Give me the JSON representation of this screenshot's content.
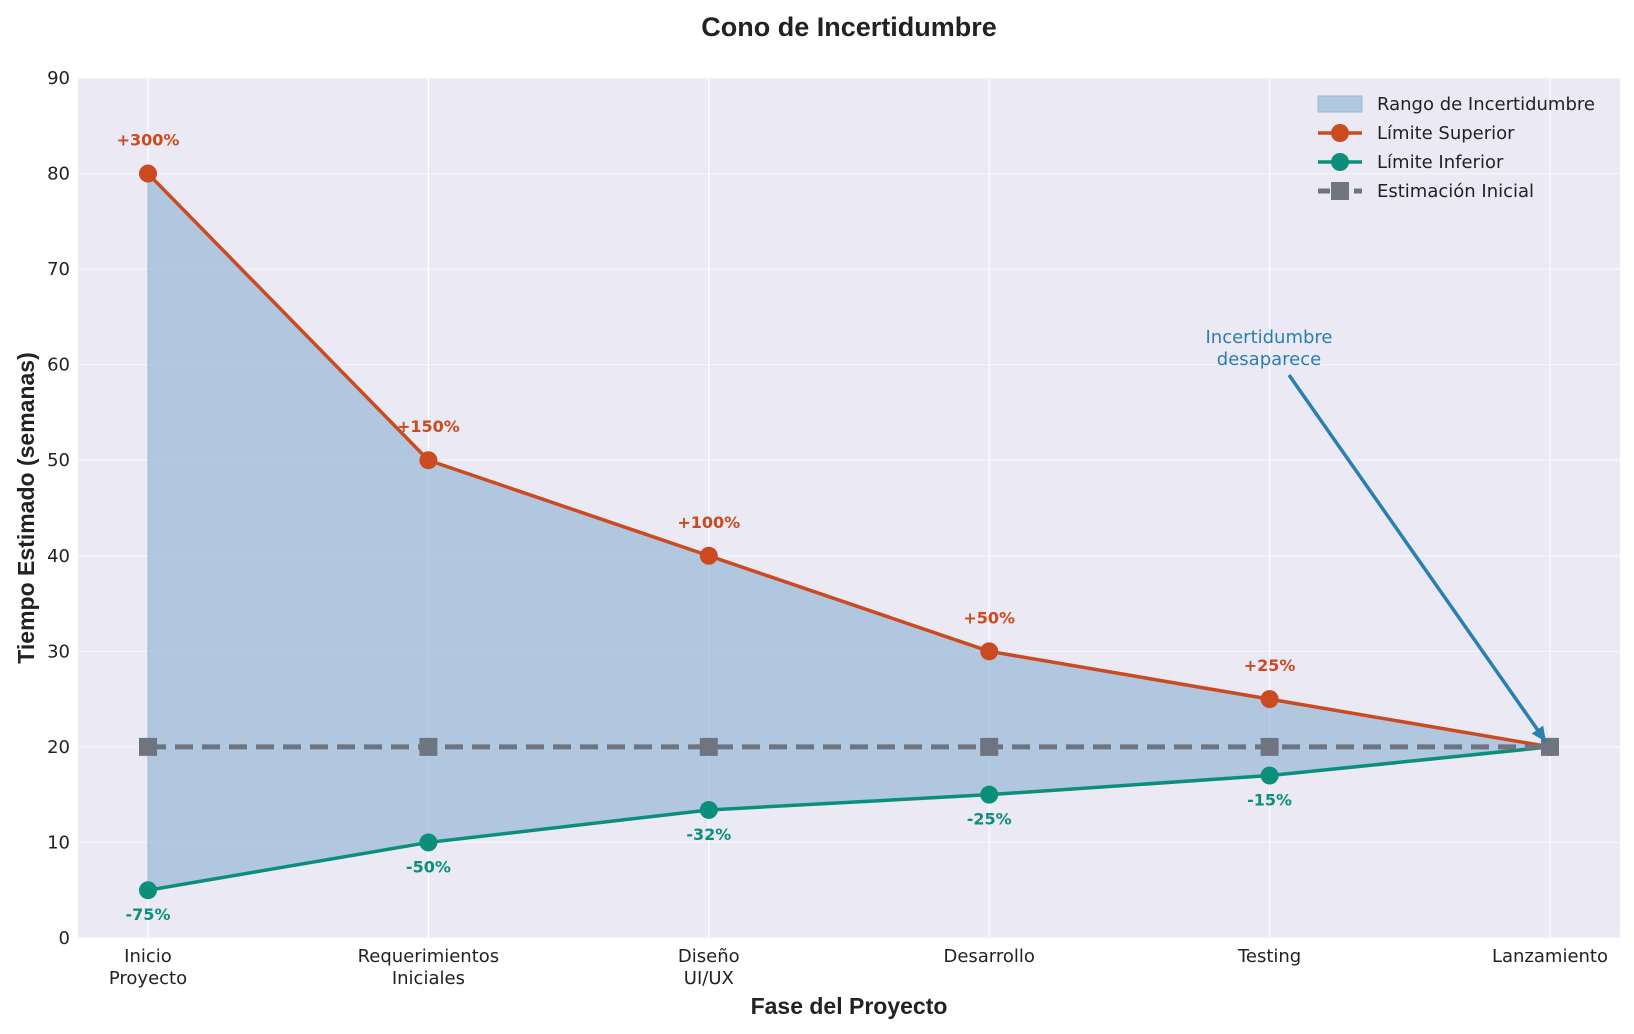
{
  "chart_data": {
    "type": "line",
    "title": "Cono de Incertidumbre",
    "xlabel": "Fase del Proyecto",
    "ylabel": "Tiempo Estimado (semanas)",
    "categories": [
      [
        "Inicio",
        "Proyecto"
      ],
      [
        "Requerimientos",
        "Iniciales"
      ],
      [
        "Diseño",
        "UI/UX"
      ],
      [
        "Desarrollo"
      ],
      [
        "Testing"
      ],
      [
        "Lanzamiento"
      ]
    ],
    "ylim": [
      0,
      90
    ],
    "yticks": [
      0,
      10,
      20,
      30,
      40,
      50,
      60,
      70,
      80,
      90
    ],
    "grid": true,
    "legend_position": "top-right",
    "series": [
      {
        "name": "Límite Superior",
        "values": [
          80,
          50,
          40,
          30,
          25,
          20
        ],
        "color": "#cc4a1f",
        "marker": "circle"
      },
      {
        "name": "Límite Inferior",
        "values": [
          5,
          10,
          13.4,
          15,
          17,
          20
        ],
        "color": "#0b8f7a",
        "marker": "circle"
      },
      {
        "name": "Estimación Inicial",
        "values": [
          20,
          20,
          20,
          20,
          20,
          20
        ],
        "color": "#6e7480",
        "marker": "square",
        "dashed": true
      }
    ],
    "band": {
      "name": "Rango de Incertidumbre",
      "color": "#9bbad8"
    },
    "upper_labels": [
      "+300%",
      "+150%",
      "+100%",
      "+50%",
      "+25%"
    ],
    "lower_labels": [
      "-75%",
      "-50%",
      "-32%",
      "-25%",
      "-15%"
    ],
    "annotation": {
      "lines": [
        "Incertidumbre",
        "desaparece"
      ],
      "color": "#2a7fb0",
      "target_index": 5,
      "target_value": 20
    }
  }
}
